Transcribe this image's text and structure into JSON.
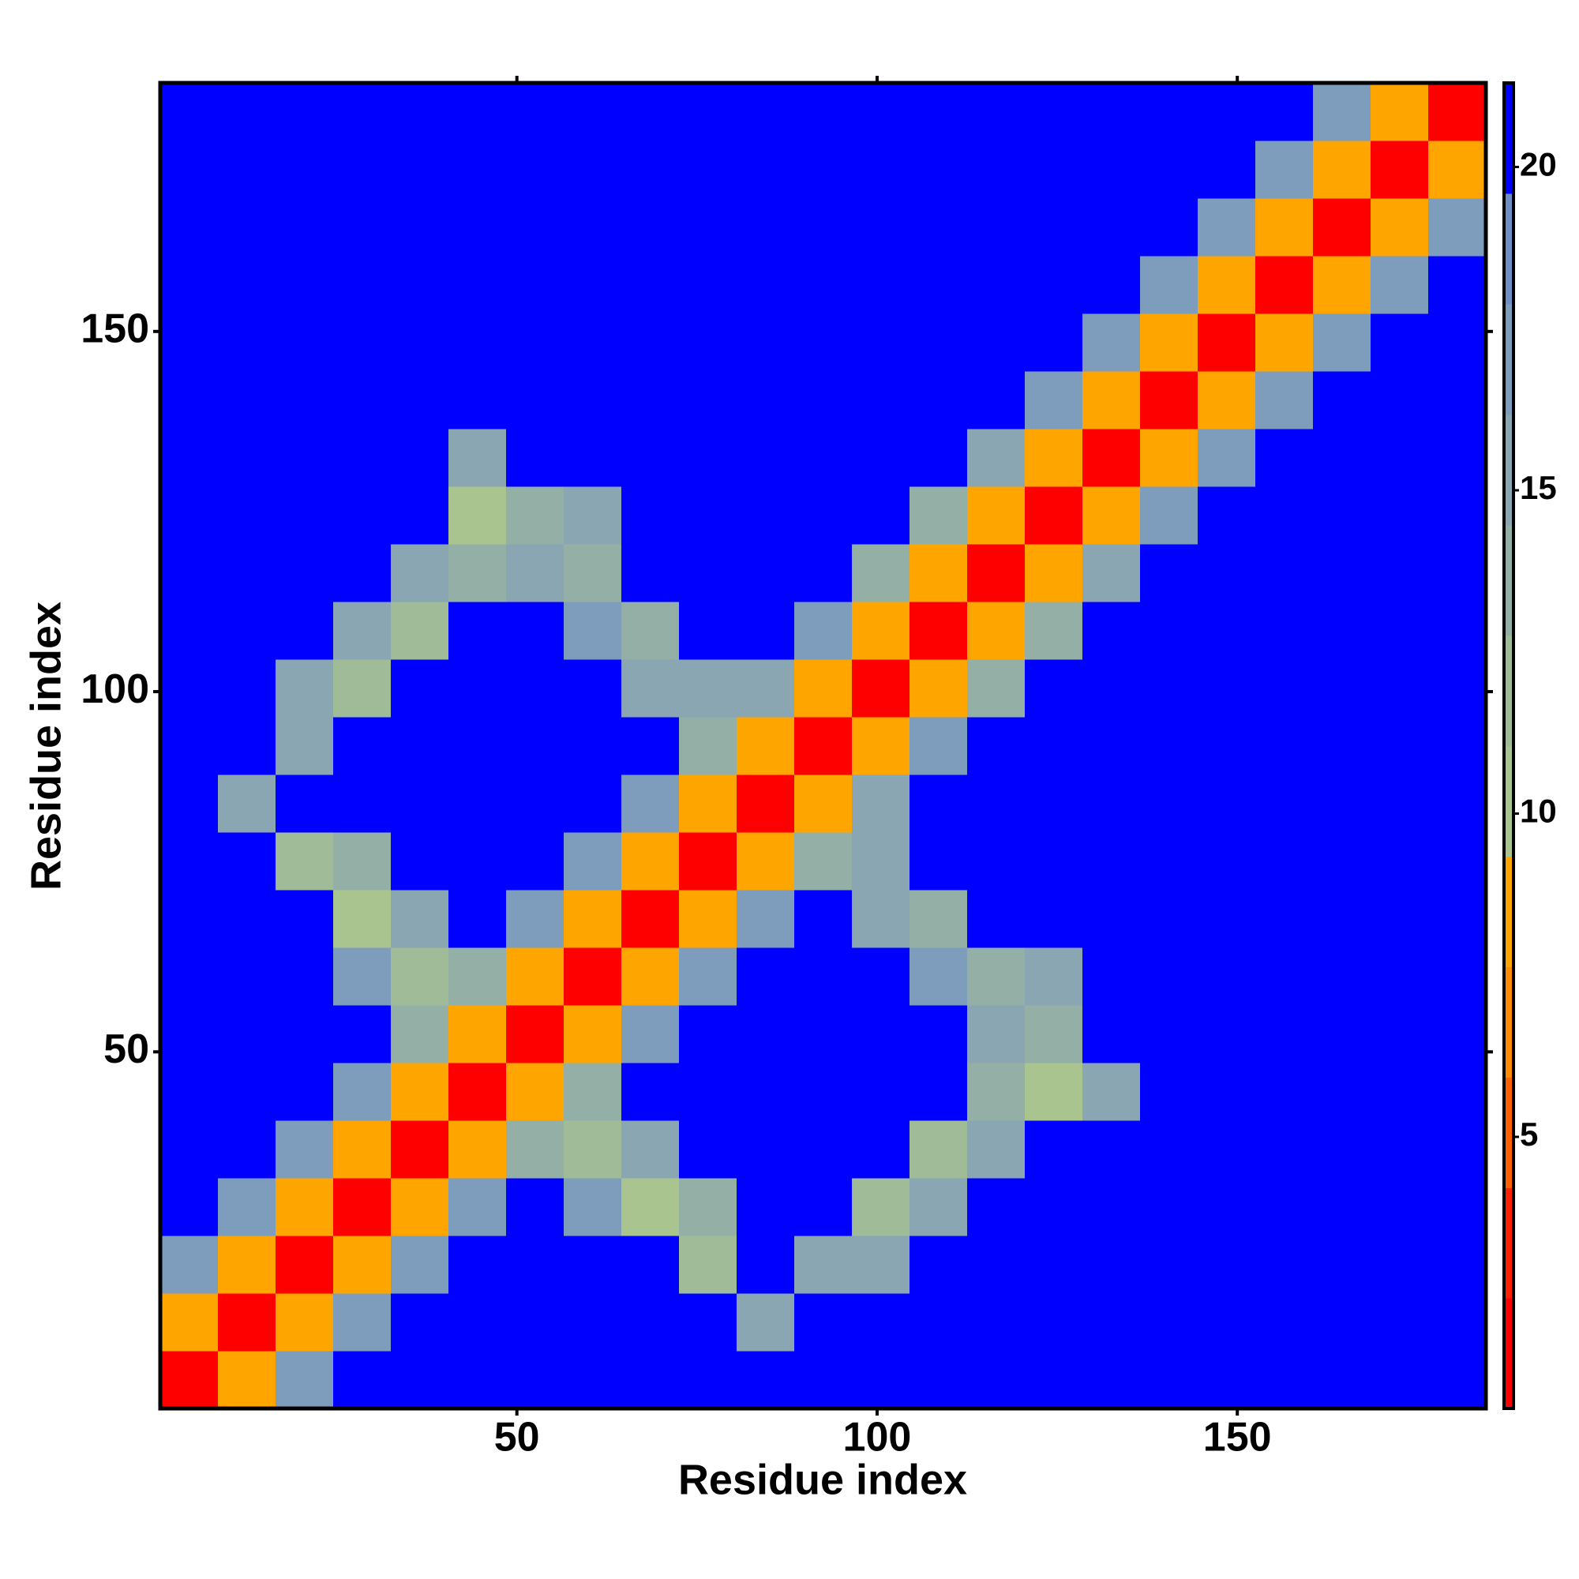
{
  "chart_data": {
    "type": "heatmap",
    "x_label": "Residue index",
    "y_label": "Residue index",
    "x_bins": [
      0.5,
      8.5,
      16.5,
      24.5,
      32.5,
      40.5,
      48.5,
      56.5,
      64.5,
      72.5,
      80.5,
      88.5,
      96.5,
      104.5,
      112.5,
      120.5,
      128.5,
      136.5,
      144.5,
      152.5,
      160.5,
      168.5,
      176.5,
      184.5
    ],
    "y_bins": [
      0.5,
      8.5,
      16.5,
      24.5,
      32.5,
      40.5,
      48.5,
      56.5,
      64.5,
      72.5,
      80.5,
      88.5,
      96.5,
      104.5,
      112.5,
      120.5,
      128.5,
      136.5,
      144.5,
      152.5,
      160.5,
      168.5,
      176.5,
      184.5
    ],
    "values": [
      [
        2,
        9,
        17,
        21,
        21,
        21,
        21,
        21,
        21,
        21,
        21,
        21,
        21,
        21,
        21,
        21,
        21,
        21,
        21,
        21,
        21,
        21,
        21
      ],
      [
        9,
        2,
        9,
        17,
        21,
        21,
        21,
        21,
        21,
        21,
        15,
        21,
        21,
        21,
        21,
        21,
        21,
        21,
        21,
        21,
        21,
        21,
        21
      ],
      [
        17,
        9,
        2,
        9,
        17,
        21,
        21,
        21,
        21,
        12,
        21,
        15,
        16,
        21,
        21,
        21,
        21,
        21,
        21,
        21,
        21,
        21,
        21
      ],
      [
        21,
        17,
        9,
        2,
        9,
        17,
        21,
        17,
        11,
        14,
        21,
        21,
        12,
        15,
        21,
        21,
        21,
        21,
        21,
        21,
        21,
        21,
        21
      ],
      [
        21,
        21,
        17,
        9,
        2,
        9,
        14,
        12,
        15,
        21,
        21,
        21,
        21,
        12,
        16,
        21,
        21,
        21,
        21,
        21,
        21,
        21,
        21
      ],
      [
        21,
        21,
        21,
        17,
        9,
        2,
        9,
        13,
        21,
        21,
        21,
        21,
        21,
        21,
        13,
        11,
        15,
        21,
        21,
        21,
        21,
        21,
        21
      ],
      [
        21,
        21,
        21,
        21,
        14,
        9,
        2,
        9,
        17,
        21,
        21,
        21,
        21,
        21,
        15,
        14,
        21,
        21,
        21,
        21,
        21,
        21,
        21
      ],
      [
        21,
        21,
        21,
        17,
        12,
        13,
        9,
        2,
        9,
        17,
        21,
        21,
        21,
        17,
        14,
        16,
        21,
        21,
        21,
        21,
        21,
        21,
        21
      ],
      [
        21,
        21,
        21,
        11,
        15,
        21,
        17,
        9,
        2,
        9,
        17,
        21,
        15,
        14,
        21,
        21,
        21,
        21,
        21,
        21,
        21,
        21,
        21
      ],
      [
        21,
        21,
        12,
        14,
        21,
        21,
        21,
        17,
        9,
        2,
        9,
        14,
        16,
        21,
        21,
        21,
        21,
        21,
        21,
        21,
        21,
        21,
        21
      ],
      [
        21,
        15,
        21,
        21,
        21,
        21,
        21,
        21,
        17,
        9,
        2,
        9,
        15,
        21,
        21,
        21,
        21,
        21,
        21,
        21,
        21,
        21,
        21
      ],
      [
        21,
        21,
        15,
        21,
        21,
        21,
        21,
        21,
        21,
        14,
        9,
        2,
        9,
        17,
        21,
        21,
        21,
        21,
        21,
        21,
        21,
        21,
        21
      ],
      [
        21,
        21,
        16,
        12,
        21,
        21,
        21,
        21,
        15,
        16,
        15,
        9,
        2,
        9,
        14,
        21,
        21,
        21,
        21,
        21,
        21,
        21,
        21
      ],
      [
        21,
        21,
        21,
        15,
        12,
        21,
        21,
        17,
        14,
        21,
        21,
        17,
        9,
        2,
        9,
        14,
        21,
        21,
        21,
        21,
        21,
        21,
        21
      ],
      [
        21,
        21,
        21,
        21,
        16,
        13,
        15,
        14,
        21,
        21,
        21,
        21,
        14,
        9,
        2,
        9,
        16,
        21,
        21,
        21,
        21,
        21,
        21
      ],
      [
        21,
        21,
        21,
        21,
        21,
        11,
        14,
        16,
        21,
        21,
        21,
        21,
        21,
        14,
        9,
        2,
        9,
        17,
        21,
        21,
        21,
        21,
        21
      ],
      [
        21,
        21,
        21,
        21,
        21,
        15,
        21,
        21,
        21,
        21,
        21,
        21,
        21,
        21,
        16,
        9,
        2,
        9,
        17,
        21,
        21,
        21,
        21
      ],
      [
        21,
        21,
        21,
        21,
        21,
        21,
        21,
        21,
        21,
        21,
        21,
        21,
        21,
        21,
        21,
        17,
        9,
        2,
        9,
        17,
        21,
        21,
        21
      ],
      [
        21,
        21,
        21,
        21,
        21,
        21,
        21,
        21,
        21,
        21,
        21,
        21,
        21,
        21,
        21,
        21,
        17,
        9,
        2,
        9,
        17,
        21,
        21
      ],
      [
        21,
        21,
        21,
        21,
        21,
        21,
        21,
        21,
        21,
        21,
        21,
        21,
        21,
        21,
        21,
        21,
        21,
        17,
        9,
        2,
        9,
        17,
        21
      ],
      [
        21,
        21,
        21,
        21,
        21,
        21,
        21,
        21,
        21,
        21,
        21,
        21,
        21,
        21,
        21,
        21,
        21,
        21,
        17,
        9,
        2,
        9,
        17
      ],
      [
        21,
        21,
        21,
        21,
        21,
        21,
        21,
        21,
        21,
        21,
        21,
        21,
        21,
        21,
        21,
        21,
        21,
        21,
        21,
        17,
        9,
        2,
        9
      ],
      [
        21,
        21,
        21,
        21,
        21,
        21,
        21,
        21,
        21,
        21,
        21,
        21,
        21,
        21,
        21,
        21,
        21,
        21,
        21,
        21,
        17,
        9,
        2
      ]
    ],
    "xlim": [
      0.5,
      184.5
    ],
    "ylim": [
      0.5,
      184.5
    ],
    "xticks": [
      50,
      100,
      150
    ],
    "yticks": [
      50,
      100,
      150
    ],
    "colorbar": {
      "lim": [
        0.8,
        21.3
      ],
      "ticks": [
        5,
        10,
        15,
        20
      ],
      "colors": [
        "#ff0000",
        "#ff2000",
        "#ff6000",
        "#ff8c00",
        "#ffa500",
        "#a9c48e",
        "#9fbb98",
        "#94b0a6",
        "#8aa6b2",
        "#7e9cbc",
        "#6f8ec6",
        "#0000ff"
      ]
    }
  }
}
